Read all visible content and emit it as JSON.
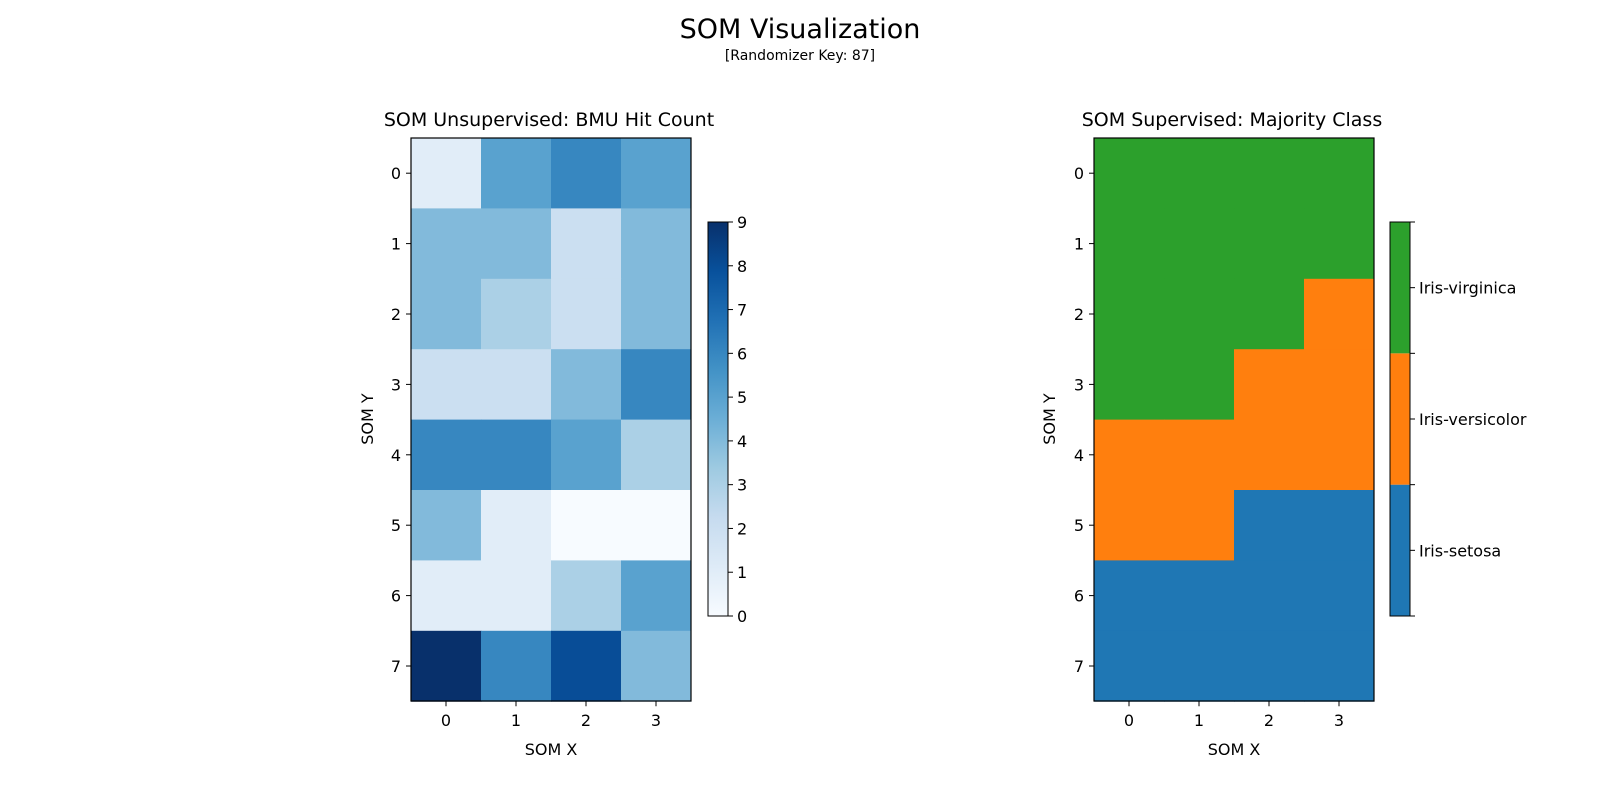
{
  "figure": {
    "title": "SOM Visualization",
    "subtitle": "[Randomizer Key: 87]"
  },
  "chart_data": [
    {
      "type": "heatmap",
      "title": "SOM Unsupervised: BMU Hit Count",
      "xlabel": "SOM X",
      "ylabel": "SOM Y",
      "x": [
        0,
        1,
        2,
        3
      ],
      "y": [
        0,
        1,
        2,
        3,
        4,
        5,
        6,
        7
      ],
      "values": [
        [
          1,
          5,
          6,
          5
        ],
        [
          4,
          4,
          2,
          4
        ],
        [
          4,
          3,
          2,
          4
        ],
        [
          2,
          2,
          4,
          6
        ],
        [
          6,
          6,
          5,
          3
        ],
        [
          4,
          1,
          0,
          0
        ],
        [
          1,
          1,
          3,
          5
        ],
        [
          9,
          6,
          8,
          4
        ]
      ],
      "colormap": "Blues",
      "colorbar": {
        "min": 0,
        "max": 9,
        "ticks": [
          0,
          1,
          2,
          3,
          4,
          5,
          6,
          7,
          8,
          9
        ]
      },
      "grid": false
    },
    {
      "type": "heatmap",
      "title": "SOM Supervised: Majority Class",
      "xlabel": "SOM X",
      "ylabel": "SOM Y",
      "x": [
        0,
        1,
        2,
        3
      ],
      "y": [
        0,
        1,
        2,
        3,
        4,
        5,
        6,
        7
      ],
      "classes": [
        "Iris-setosa",
        "Iris-versicolor",
        "Iris-virginica"
      ],
      "class_colors": [
        "#1f77b4",
        "#ff7f0e",
        "#2ca02c"
      ],
      "values": [
        [
          2,
          2,
          2,
          2
        ],
        [
          2,
          2,
          2,
          2
        ],
        [
          2,
          2,
          2,
          1
        ],
        [
          2,
          2,
          1,
          1
        ],
        [
          1,
          1,
          1,
          1
        ],
        [
          1,
          1,
          0,
          0
        ],
        [
          0,
          0,
          0,
          0
        ],
        [
          0,
          0,
          0,
          0
        ]
      ],
      "colorbar": {
        "labels": [
          "Iris-setosa",
          "Iris-versicolor",
          "Iris-virginica"
        ]
      },
      "grid": false
    }
  ]
}
